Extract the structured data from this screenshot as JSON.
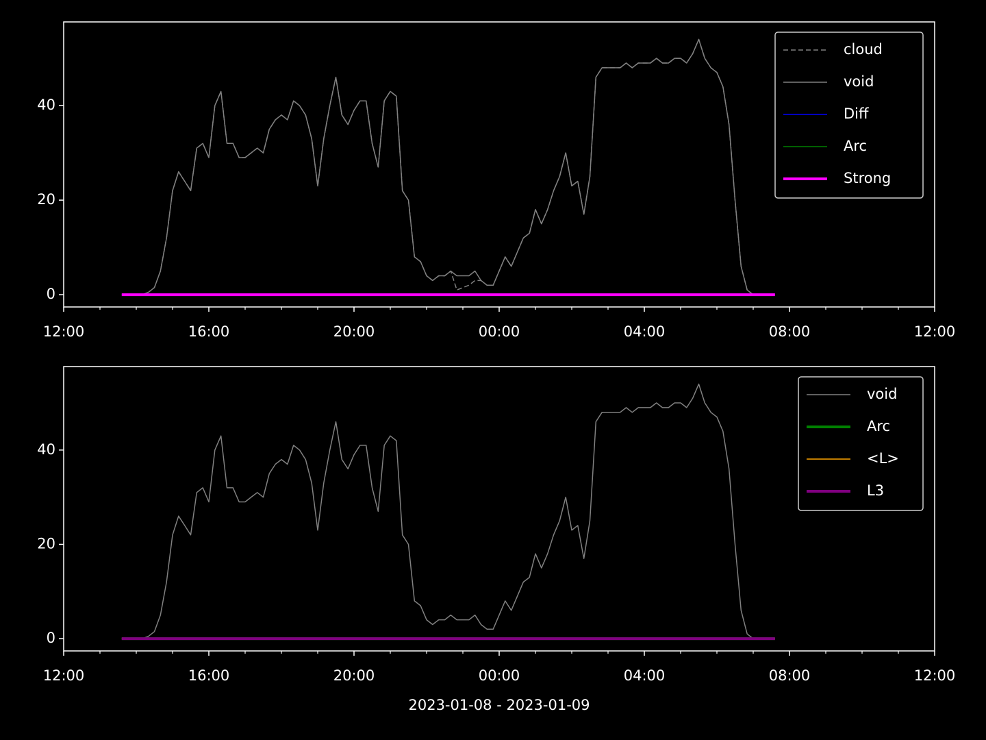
{
  "chart_data": [
    {
      "type": "line",
      "x": [
        "2023-01-08T13:40",
        "2023-01-08T13:50",
        "2023-01-08T14:00",
        "2023-01-08T14:10",
        "2023-01-08T14:20",
        "2023-01-08T14:30",
        "2023-01-08T14:40",
        "2023-01-08T14:50",
        "2023-01-08T15:00",
        "2023-01-08T15:10",
        "2023-01-08T15:20",
        "2023-01-08T15:30",
        "2023-01-08T15:40",
        "2023-01-08T15:50",
        "2023-01-08T16:00",
        "2023-01-08T16:10",
        "2023-01-08T16:20",
        "2023-01-08T16:30",
        "2023-01-08T16:40",
        "2023-01-08T16:50",
        "2023-01-08T17:00",
        "2023-01-08T17:10",
        "2023-01-08T17:20",
        "2023-01-08T17:30",
        "2023-01-08T17:40",
        "2023-01-08T17:50",
        "2023-01-08T18:00",
        "2023-01-08T18:10",
        "2023-01-08T18:20",
        "2023-01-08T18:30",
        "2023-01-08T18:40",
        "2023-01-08T18:50",
        "2023-01-08T19:00",
        "2023-01-08T19:10",
        "2023-01-08T19:20",
        "2023-01-08T19:30",
        "2023-01-08T19:40",
        "2023-01-08T19:50",
        "2023-01-08T20:00",
        "2023-01-08T20:10",
        "2023-01-08T20:20",
        "2023-01-08T20:30",
        "2023-01-08T20:40",
        "2023-01-08T20:50",
        "2023-01-08T21:00",
        "2023-01-08T21:10",
        "2023-01-08T21:20",
        "2023-01-08T21:30",
        "2023-01-08T21:40",
        "2023-01-08T21:50",
        "2023-01-08T22:00",
        "2023-01-08T22:10",
        "2023-01-08T22:20",
        "2023-01-08T22:30",
        "2023-01-08T22:40",
        "2023-01-08T22:50",
        "2023-01-08T23:00",
        "2023-01-08T23:10",
        "2023-01-08T23:20",
        "2023-01-08T23:30",
        "2023-01-08T23:40",
        "2023-01-08T23:50",
        "2023-01-09T00:00",
        "2023-01-09T00:10",
        "2023-01-09T00:20",
        "2023-01-09T00:30",
        "2023-01-09T00:40",
        "2023-01-09T00:50",
        "2023-01-09T01:00",
        "2023-01-09T01:10",
        "2023-01-09T01:20",
        "2023-01-09T01:30",
        "2023-01-09T01:40",
        "2023-01-09T01:50",
        "2023-01-09T02:00",
        "2023-01-09T02:10",
        "2023-01-09T02:20",
        "2023-01-09T02:30",
        "2023-01-09T02:40",
        "2023-01-09T02:50",
        "2023-01-09T03:00",
        "2023-01-09T03:10",
        "2023-01-09T03:20",
        "2023-01-09T03:30",
        "2023-01-09T03:40",
        "2023-01-09T03:50",
        "2023-01-09T04:00",
        "2023-01-09T04:10",
        "2023-01-09T04:20",
        "2023-01-09T04:30",
        "2023-01-09T04:40",
        "2023-01-09T04:50",
        "2023-01-09T05:00",
        "2023-01-09T05:10",
        "2023-01-09T05:20",
        "2023-01-09T05:30",
        "2023-01-09T05:40",
        "2023-01-09T05:50",
        "2023-01-09T06:00",
        "2023-01-09T06:10",
        "2023-01-09T06:20",
        "2023-01-09T06:30",
        "2023-01-09T06:40",
        "2023-01-09T06:50",
        "2023-01-09T07:00"
      ],
      "series": [
        {
          "name": "cloud",
          "color": "#808080",
          "linestyle": "dashed",
          "linewidth": 1.5,
          "values": [
            0,
            0,
            0,
            0,
            0.5,
            1.5,
            5,
            12,
            22,
            26,
            24,
            22,
            31,
            32,
            29,
            40,
            43,
            32,
            32,
            29,
            29,
            30,
            31,
            30,
            35,
            37,
            38,
            37,
            41,
            40,
            38,
            33,
            23,
            33,
            40,
            46,
            38,
            36,
            39,
            41,
            41,
            32,
            27,
            41,
            43,
            42,
            22,
            20,
            8,
            7,
            4,
            3,
            4,
            4,
            5,
            1,
            1.5,
            2,
            3,
            3,
            2,
            2,
            5,
            8,
            6,
            9,
            12,
            13,
            18,
            15,
            18,
            22,
            25,
            30,
            23,
            24,
            17,
            25,
            46,
            48,
            48,
            48,
            48,
            49,
            48,
            49,
            49,
            49,
            50,
            49,
            49,
            50,
            50,
            49,
            51,
            54,
            50,
            48,
            47,
            44,
            36,
            20,
            6,
            1,
            0
          ]
        },
        {
          "name": "void",
          "color": "#808080",
          "linestyle": "solid",
          "linewidth": 1.5,
          "values": [
            0,
            0,
            0,
            0,
            0.5,
            1.5,
            5,
            12,
            22,
            26,
            24,
            22,
            31,
            32,
            29,
            40,
            43,
            32,
            32,
            29,
            29,
            30,
            31,
            30,
            35,
            37,
            38,
            37,
            41,
            40,
            38,
            33,
            23,
            33,
            40,
            46,
            38,
            36,
            39,
            41,
            41,
            32,
            27,
            41,
            43,
            42,
            22,
            20,
            8,
            7,
            4,
            3,
            4,
            4,
            5,
            4,
            4,
            4,
            5,
            3,
            2,
            2,
            5,
            8,
            6,
            9,
            12,
            13,
            18,
            15,
            18,
            22,
            25,
            30,
            23,
            24,
            17,
            25,
            46,
            48,
            48,
            48,
            48,
            49,
            48,
            49,
            49,
            49,
            50,
            49,
            49,
            50,
            50,
            49,
            51,
            54,
            50,
            48,
            47,
            44,
            36,
            20,
            6,
            1,
            0
          ]
        },
        {
          "name": "Diff",
          "color": "#0000ff",
          "linestyle": "solid",
          "linewidth": 1.5,
          "x": [
            "2023-01-08T13:36",
            "2023-01-09T07:36"
          ],
          "values": [
            0,
            0
          ]
        },
        {
          "name": "Arc",
          "color": "#008000",
          "linestyle": "solid",
          "linewidth": 1.5,
          "x": [
            "2023-01-08T13:36",
            "2023-01-09T07:36"
          ],
          "values": [
            0,
            0
          ]
        },
        {
          "name": "Strong",
          "color": "#ff00ff",
          "linestyle": "solid",
          "linewidth": 4,
          "x": [
            "2023-01-08T13:36",
            "2023-01-09T07:36"
          ],
          "values": [
            0,
            0
          ]
        }
      ],
      "xlim": [
        "2023-01-08T12:00",
        "2023-01-09T12:00"
      ],
      "xticks": [
        {
          "value": "2023-01-08T12:00",
          "label": "12:00"
        },
        {
          "value": "2023-01-08T16:00",
          "label": "16:00"
        },
        {
          "value": "2023-01-08T20:00",
          "label": "20:00"
        },
        {
          "value": "2023-01-09T00:00",
          "label": "00:00"
        },
        {
          "value": "2023-01-09T04:00",
          "label": "04:00"
        },
        {
          "value": "2023-01-09T08:00",
          "label": "08:00"
        },
        {
          "value": "2023-01-09T12:00",
          "label": "12:00"
        }
      ],
      "xminorticks": [
        "2023-01-08T13:00",
        "2023-01-08T14:00",
        "2023-01-08T15:00",
        "2023-01-08T17:00",
        "2023-01-08T18:00",
        "2023-01-08T19:00",
        "2023-01-08T21:00",
        "2023-01-08T22:00",
        "2023-01-08T23:00",
        "2023-01-09T01:00",
        "2023-01-09T02:00",
        "2023-01-09T03:00",
        "2023-01-09T05:00",
        "2023-01-09T06:00",
        "2023-01-09T07:00",
        "2023-01-09T09:00",
        "2023-01-09T10:00",
        "2023-01-09T11:00"
      ],
      "ylim": [
        -2.6,
        57.7
      ],
      "yticks": [
        0,
        20,
        40
      ],
      "legend": "upper right"
    },
    {
      "type": "line",
      "x": [
        "2023-01-08T13:40",
        "2023-01-08T13:50",
        "2023-01-08T14:00",
        "2023-01-08T14:10",
        "2023-01-08T14:20",
        "2023-01-08T14:30",
        "2023-01-08T14:40",
        "2023-01-08T14:50",
        "2023-01-08T15:00",
        "2023-01-08T15:10",
        "2023-01-08T15:20",
        "2023-01-08T15:30",
        "2023-01-08T15:40",
        "2023-01-08T15:50",
        "2023-01-08T16:00",
        "2023-01-08T16:10",
        "2023-01-08T16:20",
        "2023-01-08T16:30",
        "2023-01-08T16:40",
        "2023-01-08T16:50",
        "2023-01-08T17:00",
        "2023-01-08T17:10",
        "2023-01-08T17:20",
        "2023-01-08T17:30",
        "2023-01-08T17:40",
        "2023-01-08T17:50",
        "2023-01-08T18:00",
        "2023-01-08T18:10",
        "2023-01-08T18:20",
        "2023-01-08T18:30",
        "2023-01-08T18:40",
        "2023-01-08T18:50",
        "2023-01-08T19:00",
        "2023-01-08T19:10",
        "2023-01-08T19:20",
        "2023-01-08T19:30",
        "2023-01-08T19:40",
        "2023-01-08T19:50",
        "2023-01-08T20:00",
        "2023-01-08T20:10",
        "2023-01-08T20:20",
        "2023-01-08T20:30",
        "2023-01-08T20:40",
        "2023-01-08T20:50",
        "2023-01-08T21:00",
        "2023-01-08T21:10",
        "2023-01-08T21:20",
        "2023-01-08T21:30",
        "2023-01-08T21:40",
        "2023-01-08T21:50",
        "2023-01-08T22:00",
        "2023-01-08T22:10",
        "2023-01-08T22:20",
        "2023-01-08T22:30",
        "2023-01-08T22:40",
        "2023-01-08T22:50",
        "2023-01-08T23:00",
        "2023-01-08T23:10",
        "2023-01-08T23:20",
        "2023-01-08T23:30",
        "2023-01-08T23:40",
        "2023-01-08T23:50",
        "2023-01-09T00:00",
        "2023-01-09T00:10",
        "2023-01-09T00:20",
        "2023-01-09T00:30",
        "2023-01-09T00:40",
        "2023-01-09T00:50",
        "2023-01-09T01:00",
        "2023-01-09T01:10",
        "2023-01-09T01:20",
        "2023-01-09T01:30",
        "2023-01-09T01:40",
        "2023-01-09T01:50",
        "2023-01-09T02:00",
        "2023-01-09T02:10",
        "2023-01-09T02:20",
        "2023-01-09T02:30",
        "2023-01-09T02:40",
        "2023-01-09T02:50",
        "2023-01-09T03:00",
        "2023-01-09T03:10",
        "2023-01-09T03:20",
        "2023-01-09T03:30",
        "2023-01-09T03:40",
        "2023-01-09T03:50",
        "2023-01-09T04:00",
        "2023-01-09T04:10",
        "2023-01-09T04:20",
        "2023-01-09T04:30",
        "2023-01-09T04:40",
        "2023-01-09T04:50",
        "2023-01-09T05:00",
        "2023-01-09T05:10",
        "2023-01-09T05:20",
        "2023-01-09T05:30",
        "2023-01-09T05:40",
        "2023-01-09T05:50",
        "2023-01-09T06:00",
        "2023-01-09T06:10",
        "2023-01-09T06:20",
        "2023-01-09T06:30",
        "2023-01-09T06:40",
        "2023-01-09T06:50",
        "2023-01-09T07:00"
      ],
      "series": [
        {
          "name": "void",
          "color": "#808080",
          "linestyle": "solid",
          "linewidth": 1.5,
          "values": [
            0,
            0,
            0,
            0,
            0.5,
            1.5,
            5,
            12,
            22,
            26,
            24,
            22,
            31,
            32,
            29,
            40,
            43,
            32,
            32,
            29,
            29,
            30,
            31,
            30,
            35,
            37,
            38,
            37,
            41,
            40,
            38,
            33,
            23,
            33,
            40,
            46,
            38,
            36,
            39,
            41,
            41,
            32,
            27,
            41,
            43,
            42,
            22,
            20,
            8,
            7,
            4,
            3,
            4,
            4,
            5,
            4,
            4,
            4,
            5,
            3,
            2,
            2,
            5,
            8,
            6,
            9,
            12,
            13,
            18,
            15,
            18,
            22,
            25,
            30,
            23,
            24,
            17,
            25,
            46,
            48,
            48,
            48,
            48,
            49,
            48,
            49,
            49,
            49,
            50,
            49,
            49,
            50,
            50,
            49,
            51,
            54,
            50,
            48,
            47,
            44,
            36,
            20,
            6,
            1,
            0
          ]
        },
        {
          "name": "Arc",
          "color": "#008000",
          "linestyle": "solid",
          "linewidth": 4,
          "x": [
            "2023-01-08T13:36",
            "2023-01-09T07:36"
          ],
          "values": [
            0,
            0
          ]
        },
        {
          "name": "<L>",
          "color": "#ffa500",
          "linestyle": "solid",
          "linewidth": 1.5,
          "x": [
            "2023-01-08T13:36",
            "2023-01-09T07:36"
          ],
          "values": [
            0,
            0
          ]
        },
        {
          "name": "L3",
          "color": "#800080",
          "linestyle": "solid",
          "linewidth": 4,
          "x": [
            "2023-01-08T13:36",
            "2023-01-09T07:36"
          ],
          "values": [
            0,
            0
          ]
        }
      ],
      "xlim": [
        "2023-01-08T12:00",
        "2023-01-09T12:00"
      ],
      "xticks": [
        {
          "value": "2023-01-08T12:00",
          "label": "12:00"
        },
        {
          "value": "2023-01-08T16:00",
          "label": "16:00"
        },
        {
          "value": "2023-01-08T20:00",
          "label": "20:00"
        },
        {
          "value": "2023-01-09T00:00",
          "label": "00:00"
        },
        {
          "value": "2023-01-09T04:00",
          "label": "04:00"
        },
        {
          "value": "2023-01-09T08:00",
          "label": "08:00"
        },
        {
          "value": "2023-01-09T12:00",
          "label": "12:00"
        }
      ],
      "xminorticks": [
        "2023-01-08T13:00",
        "2023-01-08T14:00",
        "2023-01-08T15:00",
        "2023-01-08T17:00",
        "2023-01-08T18:00",
        "2023-01-08T19:00",
        "2023-01-08T21:00",
        "2023-01-08T22:00",
        "2023-01-08T23:00",
        "2023-01-09T01:00",
        "2023-01-09T02:00",
        "2023-01-09T03:00",
        "2023-01-09T05:00",
        "2023-01-09T06:00",
        "2023-01-09T07:00",
        "2023-01-09T09:00",
        "2023-01-09T10:00",
        "2023-01-09T11:00"
      ],
      "ylim": [
        -2.6,
        57.7
      ],
      "yticks": [
        0,
        20,
        40
      ],
      "legend": "upper right",
      "xlabel": "2023-01-08 - 2023-01-09"
    }
  ]
}
